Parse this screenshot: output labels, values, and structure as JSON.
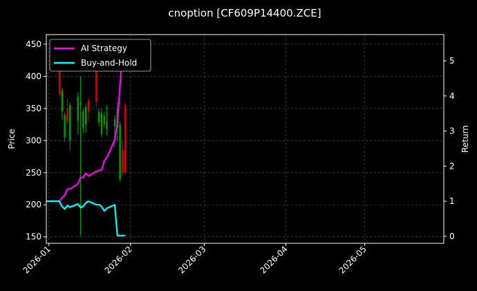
{
  "chart_data": {
    "type": "line",
    "title": "cnoption [CF609P14400.ZCE]",
    "ylabel": "Price",
    "y2label": "Return",
    "xlabel": "",
    "grid": true,
    "legend_position": "top-left",
    "x_range": [
      "2025-12-31",
      "2026-05-31"
    ],
    "ylim": [
      140,
      465
    ],
    "y2lim": [
      -0.2,
      5.75
    ],
    "x_ticks": [
      {
        "date": "2026-01-01",
        "label": "2026-01"
      },
      {
        "date": "2026-02-01",
        "label": "2026-02"
      },
      {
        "date": "2026-03-01",
        "label": "2026-03"
      },
      {
        "date": "2026-04-01",
        "label": "2026-04"
      },
      {
        "date": "2026-05-01",
        "label": "2026-05"
      }
    ],
    "y_ticks": [
      150,
      200,
      250,
      300,
      350,
      400,
      450
    ],
    "y2_ticks": [
      0,
      1,
      2,
      3,
      4,
      5
    ],
    "colors": {
      "background": "#000000",
      "up_candle": "#00a000",
      "down_candle": "#dd0000",
      "ai_strategy": "#ff00ff",
      "buy_and_hold": "#00ffff"
    },
    "candles": [
      {
        "date": "2026-01-05",
        "open": 410,
        "high": 425,
        "low": 368,
        "close": 372
      },
      {
        "date": "2026-01-06",
        "open": 345,
        "high": 382,
        "low": 332,
        "close": 378
      },
      {
        "date": "2026-01-07",
        "open": 305,
        "high": 345,
        "low": 298,
        "close": 340
      },
      {
        "date": "2026-01-08",
        "open": 350,
        "high": 365,
        "low": 326,
        "close": 330
      },
      {
        "date": "2026-01-09",
        "open": 300,
        "high": 360,
        "low": 284,
        "close": 355
      },
      {
        "date": "2026-01-12",
        "open": 330,
        "high": 375,
        "low": 310,
        "close": 368
      },
      {
        "date": "2026-01-13",
        "open": 355,
        "high": 400,
        "low": 152,
        "close": 360
      },
      {
        "date": "2026-01-14",
        "open": 320,
        "high": 350,
        "low": 312,
        "close": 345
      },
      {
        "date": "2026-01-15",
        "open": 325,
        "high": 358,
        "low": 312,
        "close": 352
      },
      {
        "date": "2026-01-16",
        "open": 362,
        "high": 368,
        "low": 330,
        "close": 345
      },
      {
        "date": "2026-01-19",
        "open": 410,
        "high": 420,
        "low": 352,
        "close": 360
      },
      {
        "date": "2026-01-20",
        "open": 328,
        "high": 350,
        "low": 322,
        "close": 345
      },
      {
        "date": "2026-01-21",
        "open": 310,
        "high": 350,
        "low": 305,
        "close": 342
      },
      {
        "date": "2026-01-22",
        "open": 325,
        "high": 345,
        "low": 320,
        "close": 338
      },
      {
        "date": "2026-01-23",
        "open": 318,
        "high": 355,
        "low": 308,
        "close": 330
      },
      {
        "date": "2026-01-26",
        "open": 322,
        "high": 340,
        "low": 290,
        "close": 333
      },
      {
        "date": "2026-01-27",
        "open": 320,
        "high": 360,
        "low": 300,
        "close": 350
      },
      {
        "date": "2026-01-28",
        "open": 240,
        "high": 330,
        "low": 235,
        "close": 325
      },
      {
        "date": "2026-01-29",
        "open": 285,
        "high": 300,
        "low": 245,
        "close": 250
      },
      {
        "date": "2026-01-30",
        "open": 355,
        "high": 360,
        "low": 247,
        "close": 250
      }
    ],
    "series": [
      {
        "name": "AI Strategy",
        "x": [
          "2025-12-31",
          "2026-01-05",
          "2026-01-06",
          "2026-01-07",
          "2026-01-08",
          "2026-01-09",
          "2026-01-12",
          "2026-01-13",
          "2026-01-14",
          "2026-01-15",
          "2026-01-16",
          "2026-01-19",
          "2026-01-20",
          "2026-01-21",
          "2026-01-22",
          "2026-01-23",
          "2026-01-26",
          "2026-01-27",
          "2026-01-28",
          "2026-01-29"
        ],
        "y": [
          1.0,
          1.0,
          1.1,
          1.18,
          1.35,
          1.35,
          1.5,
          1.68,
          1.68,
          1.8,
          1.72,
          1.85,
          1.87,
          1.9,
          2.15,
          2.25,
          2.75,
          3.25,
          4.3,
          5.4
        ]
      },
      {
        "name": "Buy-and-Hold",
        "x": [
          "2025-12-31",
          "2026-01-05",
          "2026-01-06",
          "2026-01-07",
          "2026-01-08",
          "2026-01-09",
          "2026-01-12",
          "2026-01-13",
          "2026-01-14",
          "2026-01-15",
          "2026-01-16",
          "2026-01-19",
          "2026-01-20",
          "2026-01-21",
          "2026-01-22",
          "2026-01-23",
          "2026-01-26",
          "2026-01-27",
          "2026-01-28",
          "2026-01-29",
          "2026-01-30"
        ],
        "y": [
          1.0,
          1.0,
          0.85,
          0.78,
          0.88,
          0.83,
          0.92,
          0.82,
          0.85,
          0.95,
          1.0,
          0.9,
          0.9,
          0.85,
          0.72,
          0.8,
          0.9,
          0.02,
          0.02,
          0.02,
          0.02
        ]
      }
    ]
  }
}
